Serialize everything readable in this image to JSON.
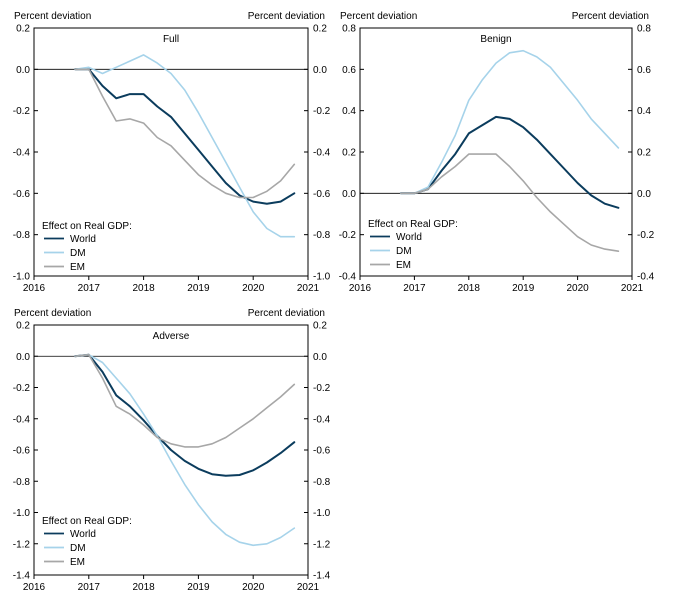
{
  "colors": {
    "World": "#0b3c5d",
    "DM": "#a6d3ea",
    "EM": "#a7a7a7",
    "frame": "#000000"
  },
  "chart_data": [
    {
      "type": "line",
      "title": "Full",
      "ylabel_left": "Percent deviation",
      "ylabel_right": "Percent deviation",
      "xlim": [
        2016,
        2021
      ],
      "ylim": [
        -1.0,
        0.2
      ],
      "yticks": [
        0.2,
        0.0,
        -0.2,
        -0.4,
        -0.6,
        -0.8,
        -1.0
      ],
      "ytick_labels": [
        "0.2",
        "0.0",
        "-0.2",
        "-0.4",
        "-0.6",
        "-0.8",
        "-1.0"
      ],
      "xticks": [
        2016,
        2017,
        2018,
        2019,
        2020,
        2021
      ],
      "xtick_labels": [
        "2016",
        "2017",
        "2018",
        "2019",
        "2020",
        "2021"
      ],
      "legend_title": "Effect on Real GDP:",
      "legend_position": "bottom-left",
      "x": [
        2016.75,
        2017.0,
        2017.25,
        2017.5,
        2017.75,
        2018.0,
        2018.25,
        2018.5,
        2018.75,
        2019.0,
        2019.25,
        2019.5,
        2019.75,
        2020.0,
        2020.25,
        2020.5,
        2020.75
      ],
      "series": [
        {
          "name": "World",
          "values": [
            0.0,
            0.0,
            -0.08,
            -0.14,
            -0.12,
            -0.12,
            -0.18,
            -0.23,
            -0.31,
            -0.39,
            -0.47,
            -0.55,
            -0.61,
            -0.64,
            -0.65,
            -0.64,
            -0.6
          ]
        },
        {
          "name": "DM",
          "values": [
            0.0,
            0.01,
            -0.02,
            0.01,
            0.04,
            0.07,
            0.03,
            -0.02,
            -0.1,
            -0.21,
            -0.33,
            -0.45,
            -0.57,
            -0.69,
            -0.77,
            -0.81,
            -0.81
          ]
        },
        {
          "name": "EM",
          "values": [
            0.0,
            0.0,
            -0.13,
            -0.25,
            -0.24,
            -0.26,
            -0.33,
            -0.37,
            -0.44,
            -0.51,
            -0.56,
            -0.6,
            -0.62,
            -0.62,
            -0.59,
            -0.54,
            -0.46
          ]
        }
      ]
    },
    {
      "type": "line",
      "title": "Benign",
      "ylabel_left": "Percent deviation",
      "ylabel_right": "Percent deviation",
      "xlim": [
        2016,
        2021
      ],
      "ylim": [
        -0.4,
        0.8
      ],
      "yticks": [
        0.8,
        0.6,
        0.4,
        0.2,
        0.0,
        -0.2,
        -0.4
      ],
      "ytick_labels": [
        "0.8",
        "0.6",
        "0.4",
        "0.2",
        "0.0",
        "-0.2",
        "-0.4"
      ],
      "xticks": [
        2016,
        2017,
        2018,
        2019,
        2020,
        2021
      ],
      "xtick_labels": [
        "2016",
        "2017",
        "2018",
        "2019",
        "2020",
        "2021"
      ],
      "legend_title": "Effect on Real GDP:",
      "legend_position": "bottom-left",
      "x": [
        2016.75,
        2017.0,
        2017.25,
        2017.5,
        2017.75,
        2018.0,
        2018.25,
        2018.5,
        2018.75,
        2019.0,
        2019.25,
        2019.5,
        2019.75,
        2020.0,
        2020.25,
        2020.5,
        2020.75
      ],
      "series": [
        {
          "name": "World",
          "values": [
            0.0,
            0.0,
            0.02,
            0.11,
            0.19,
            0.29,
            0.33,
            0.37,
            0.36,
            0.32,
            0.26,
            0.19,
            0.12,
            0.05,
            -0.01,
            -0.05,
            -0.07
          ]
        },
        {
          "name": "DM",
          "values": [
            0.0,
            0.0,
            0.03,
            0.15,
            0.28,
            0.45,
            0.55,
            0.63,
            0.68,
            0.69,
            0.66,
            0.61,
            0.53,
            0.45,
            0.36,
            0.29,
            0.22
          ]
        },
        {
          "name": "EM",
          "values": [
            0.0,
            0.0,
            0.02,
            0.08,
            0.13,
            0.19,
            0.19,
            0.19,
            0.13,
            0.06,
            -0.02,
            -0.09,
            -0.15,
            -0.21,
            -0.25,
            -0.27,
            -0.28
          ]
        }
      ]
    },
    {
      "type": "line",
      "title": "Adverse",
      "ylabel_left": "Percent deviation",
      "ylabel_right": "Percent deviation",
      "xlim": [
        2016,
        2021
      ],
      "ylim": [
        -1.4,
        0.2
      ],
      "yticks": [
        0.2,
        0.0,
        -0.2,
        -0.4,
        -0.6,
        -0.8,
        -1.0,
        -1.2,
        -1.4
      ],
      "ytick_labels": [
        "0.2",
        "0.0",
        "-0.2",
        "-0.4",
        "-0.6",
        "-0.8",
        "-1.0",
        "-1.2",
        "-1.4"
      ],
      "xticks": [
        2016,
        2017,
        2018,
        2019,
        2020,
        2021
      ],
      "xtick_labels": [
        "2016",
        "2017",
        "2018",
        "2019",
        "2020",
        "2021"
      ],
      "legend_title": "Effect on Real GDP:",
      "legend_position": "bottom-left",
      "x": [
        2016.75,
        2017.0,
        2017.25,
        2017.5,
        2017.75,
        2018.0,
        2018.25,
        2018.5,
        2018.75,
        2019.0,
        2019.25,
        2019.5,
        2019.75,
        2020.0,
        2020.25,
        2020.5,
        2020.75
      ],
      "series": [
        {
          "name": "World",
          "values": [
            0.0,
            0.01,
            -0.1,
            -0.25,
            -0.32,
            -0.41,
            -0.51,
            -0.6,
            -0.67,
            -0.72,
            -0.755,
            -0.765,
            -0.76,
            -0.73,
            -0.68,
            -0.62,
            -0.55
          ]
        },
        {
          "name": "DM",
          "values": [
            0.0,
            0.01,
            -0.04,
            -0.14,
            -0.24,
            -0.37,
            -0.51,
            -0.67,
            -0.82,
            -0.95,
            -1.06,
            -1.14,
            -1.19,
            -1.21,
            -1.2,
            -1.16,
            -1.1
          ]
        },
        {
          "name": "EM",
          "values": [
            0.0,
            0.01,
            -0.14,
            -0.32,
            -0.37,
            -0.44,
            -0.52,
            -0.56,
            -0.58,
            -0.58,
            -0.56,
            -0.52,
            -0.46,
            -0.4,
            -0.33,
            -0.26,
            -0.18
          ]
        }
      ]
    }
  ]
}
